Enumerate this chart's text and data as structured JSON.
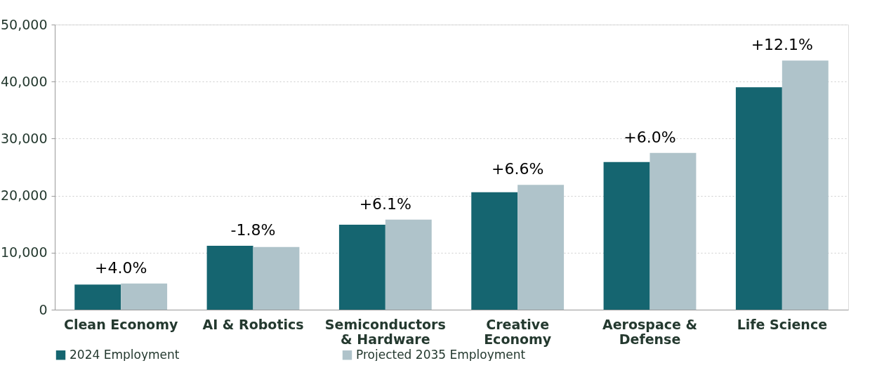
{
  "chart_data": {
    "type": "bar",
    "categories": [
      "Clean Economy",
      "AI & Robotics",
      "Semiconductors\n& Hardware",
      "Creative\nEconomy",
      "Aerospace &\nDefense",
      "Life Science"
    ],
    "series": [
      {
        "name": "2024 Employment",
        "color": "#156570",
        "values": [
          4400,
          11200,
          14900,
          20600,
          25900,
          39000
        ]
      },
      {
        "name": "Projected 2035 Employment",
        "color": "#afc3ca",
        "values": [
          4600,
          11000,
          15800,
          21900,
          27500,
          43700
        ]
      }
    ],
    "ylim": [
      0,
      50000
    ],
    "yticks": [
      0,
      {
        "value": 10000,
        "label": "10,000"
      },
      {
        "value": 20000,
        "label": "20,000"
      },
      {
        "value": 30000,
        "label": "30,000"
      },
      {
        "value": 40000,
        "label": "40,000"
      },
      {
        "value": 50000,
        "label": "50,000"
      }
    ],
    "grid": "y",
    "legend": "bottom",
    "annotations": [
      {
        "text": "+4.0%",
        "x": "Clean Economy",
        "y": 4600
      },
      {
        "text": "-1.8%",
        "x": "AI & Robotics",
        "y": 11200
      },
      {
        "text": "+6.1%",
        "x": "Semiconductors\n& Hardware",
        "y": 15800
      },
      {
        "text": "+6.6%",
        "x": "Creative\nEconomy",
        "y": 21900
      },
      {
        "text": "+6.0%",
        "x": "Aerospace &\nDefense",
        "y": 27500
      },
      {
        "text": "+12.1%",
        "x": "Life Science",
        "y": 43700
      }
    ]
  }
}
